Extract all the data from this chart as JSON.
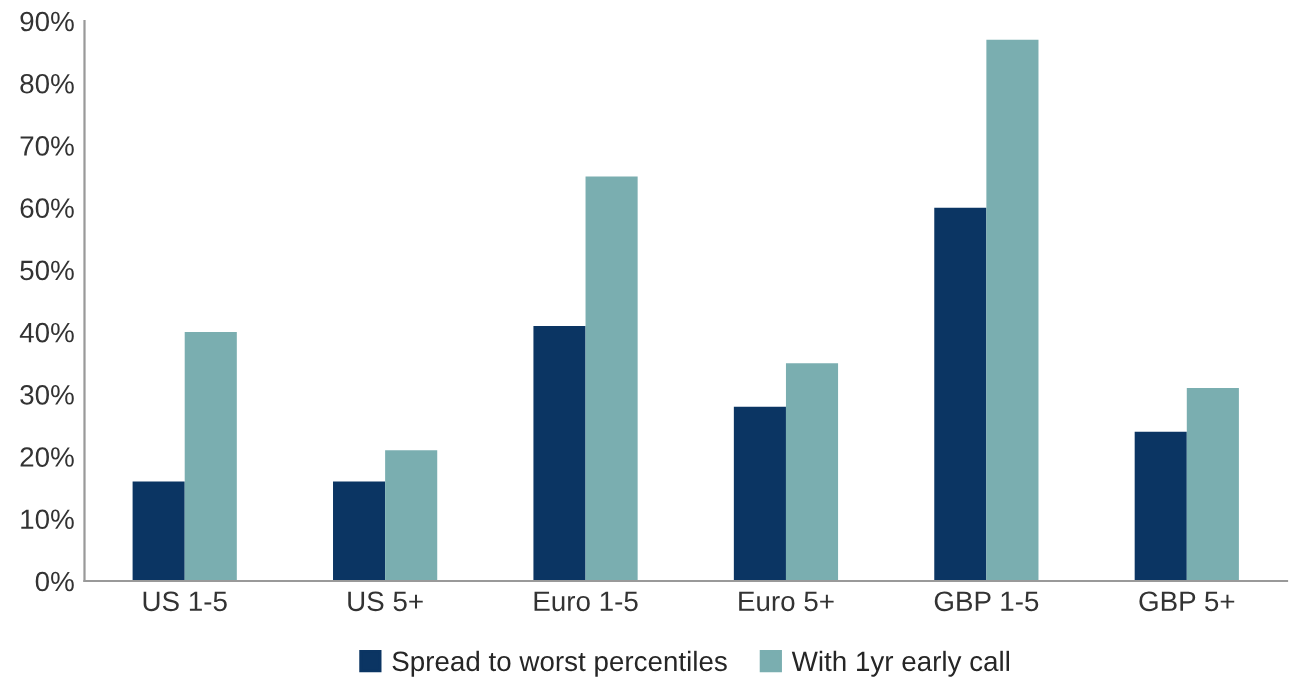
{
  "chart_data": {
    "type": "bar",
    "categories": [
      "US 1-5",
      "US 5+",
      "Euro 1-5",
      "Euro 5+",
      "GBP 1-5",
      "GBP 5+"
    ],
    "series": [
      {
        "name": "Spread to worst percentiles",
        "color": "#0b3563",
        "values": [
          16,
          16,
          41,
          28,
          60,
          24
        ]
      },
      {
        "name": "With 1yr early call",
        "color": "#7aaeb0",
        "values": [
          40,
          21,
          65,
          35,
          87,
          31
        ]
      }
    ],
    "ylim": [
      0,
      90
    ],
    "yticks": [
      {
        "value": 0,
        "label": "0%"
      },
      {
        "value": 10,
        "label": "10%"
      },
      {
        "value": 20,
        "label": "20%"
      },
      {
        "value": 30,
        "label": "30%"
      },
      {
        "value": 40,
        "label": "40%"
      },
      {
        "value": 50,
        "label": "50%"
      },
      {
        "value": 60,
        "label": "60%"
      },
      {
        "value": 70,
        "label": "70%"
      },
      {
        "value": 80,
        "label": "80%"
      },
      {
        "value": 90,
        "label": "90%"
      }
    ],
    "grid": false,
    "legend": "bottom"
  }
}
